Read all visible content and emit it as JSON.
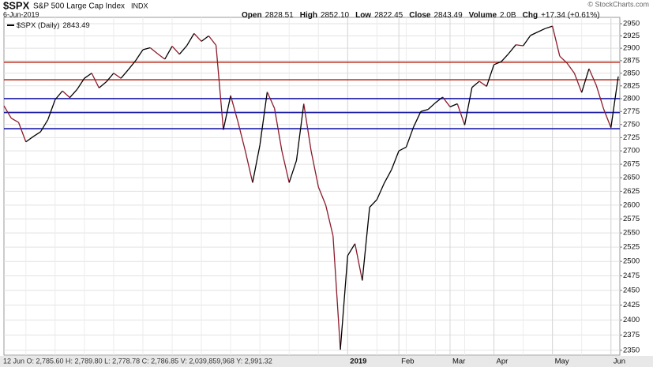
{
  "chart_data": {
    "type": "line",
    "title": "$SPX",
    "subtitle": "S&P 500 Large Cap Index",
    "exchange": "INDX",
    "date": "6-Jun-2019",
    "watermark": "© StockCharts.com",
    "quote": [
      {
        "label": "Open",
        "value": "2828.51"
      },
      {
        "label": "High",
        "value": "2852.10"
      },
      {
        "label": "Low",
        "value": "2822.45"
      },
      {
        "label": "Close",
        "value": "2843.49"
      },
      {
        "label": "Volume",
        "value": "2.0B"
      },
      {
        "label": "Chg",
        "value": "+17.34 (+0.61%)"
      }
    ],
    "footer_text": "12 Jun O: 2,785.60 H: 2,789.80 L: 2,778.78 C: 2,786.85 V: 2,039,859,968 Y: 2,991.32",
    "categories": [
      null,
      null,
      null,
      null,
      null,
      null,
      null,
      null,
      null,
      null,
      null,
      null,
      null,
      null,
      null,
      null,
      null,
      null,
      null,
      null,
      null,
      null,
      null,
      null,
      null,
      null,
      null,
      null,
      null,
      null,
      null,
      null,
      null,
      null,
      null,
      null,
      null,
      null,
      null,
      null,
      null,
      null,
      null,
      null,
      null,
      null,
      null,
      "2019",
      null,
      null,
      null,
      null,
      null,
      null,
      "Feb",
      null,
      null,
      null,
      null,
      null,
      null,
      "Mar",
      null,
      null,
      null,
      null,
      null,
      "Apr",
      null,
      null,
      null,
      null,
      null,
      null,
      null,
      "May",
      null,
      null,
      null,
      null,
      null,
      null,
      null,
      "Jun",
      null
    ],
    "series": [
      {
        "name": "$SPX (Daily)",
        "color": "#000000",
        "down_color": "#8b1a2b",
        "values": [
          2786,
          2762,
          2754,
          2717,
          2727,
          2736,
          2759,
          2798,
          2815,
          2802,
          2818,
          2840,
          2850,
          2821,
          2833,
          2850,
          2840,
          2857,
          2875,
          2897,
          2901,
          2889,
          2878,
          2904,
          2888,
          2905,
          2930,
          2914,
          2925,
          2906,
          2740,
          2806,
          2755,
          2700,
          2641,
          2711,
          2813,
          2781,
          2700,
          2641,
          2682,
          2790,
          2700,
          2633,
          2600,
          2545,
          2351,
          2510,
          2531,
          2467,
          2596,
          2610,
          2640,
          2665,
          2700,
          2707,
          2745,
          2775,
          2779,
          2792,
          2803,
          2784,
          2790,
          2749,
          2822,
          2834,
          2824,
          2867,
          2873,
          2889,
          2907,
          2905,
          2926,
          2933,
          2940,
          2945,
          2884,
          2870,
          2850,
          2812,
          2859,
          2826,
          2780,
          2744,
          2843.49
        ]
      }
    ],
    "hlines": [
      {
        "value": 2872,
        "color": "#c0392b"
      },
      {
        "value": 2837,
        "color": "#c0392b"
      },
      {
        "value": 2800,
        "color": "#1a1aa6"
      },
      {
        "value": 2773,
        "color": "#1a1aa6"
      },
      {
        "value": 2742,
        "color": "#1a1aa6"
      }
    ],
    "ylim": [
      2342,
      2963
    ],
    "yticks": [
      2350,
      2375,
      2400,
      2425,
      2450,
      2475,
      2500,
      2525,
      2550,
      2575,
      2600,
      2625,
      2650,
      2675,
      2700,
      2725,
      2750,
      2775,
      2800,
      2825,
      2850,
      2875,
      2900,
      2925,
      2950
    ],
    "log_scale": true,
    "grid": true
  }
}
